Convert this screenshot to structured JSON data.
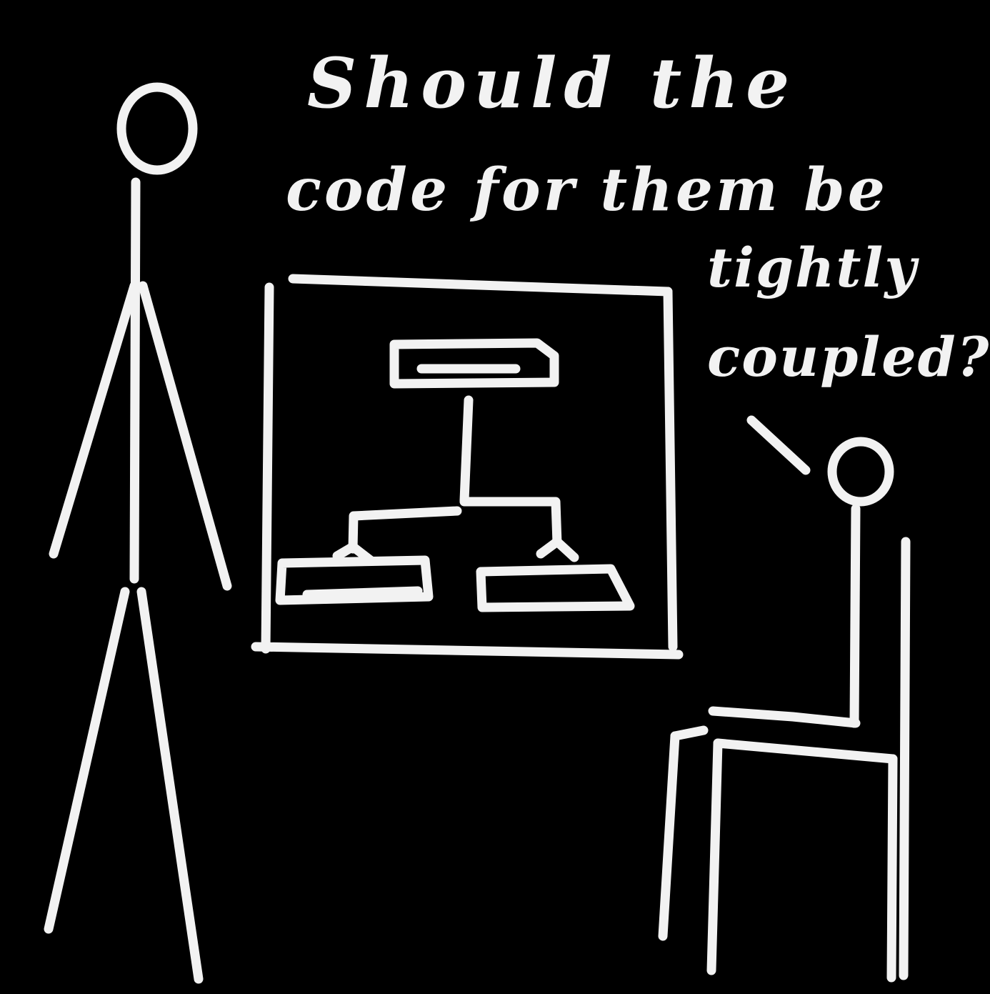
{
  "caption": {
    "line1": "Should the",
    "line2": "code for them be",
    "line3": "tightly",
    "line4": "coupled?"
  },
  "colors": {
    "background": "#000000",
    "chalk": "#f2f2f2"
  }
}
